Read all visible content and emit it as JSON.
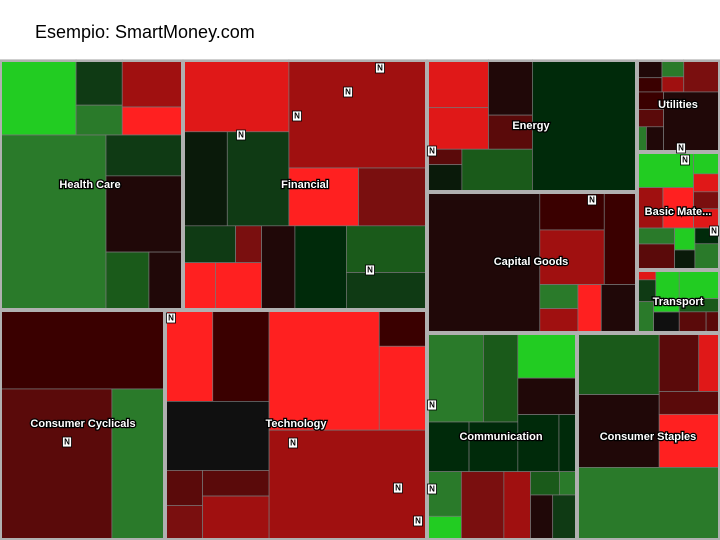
{
  "header": {
    "title": "Esempio: SmartMoney.com"
  },
  "sectors": [
    {
      "label": "Health Care"
    },
    {
      "label": "Financial"
    },
    {
      "label": "Energy"
    },
    {
      "label": "Capital Goods"
    },
    {
      "label": "Utilities"
    },
    {
      "label": "Basic Mate..."
    },
    {
      "label": "Transport"
    },
    {
      "label": "Consumer Cyclicals"
    },
    {
      "label": "Technology"
    },
    {
      "label": "Communication"
    },
    {
      "label": "Consumer Staples"
    }
  ],
  "news_marker": "N"
}
